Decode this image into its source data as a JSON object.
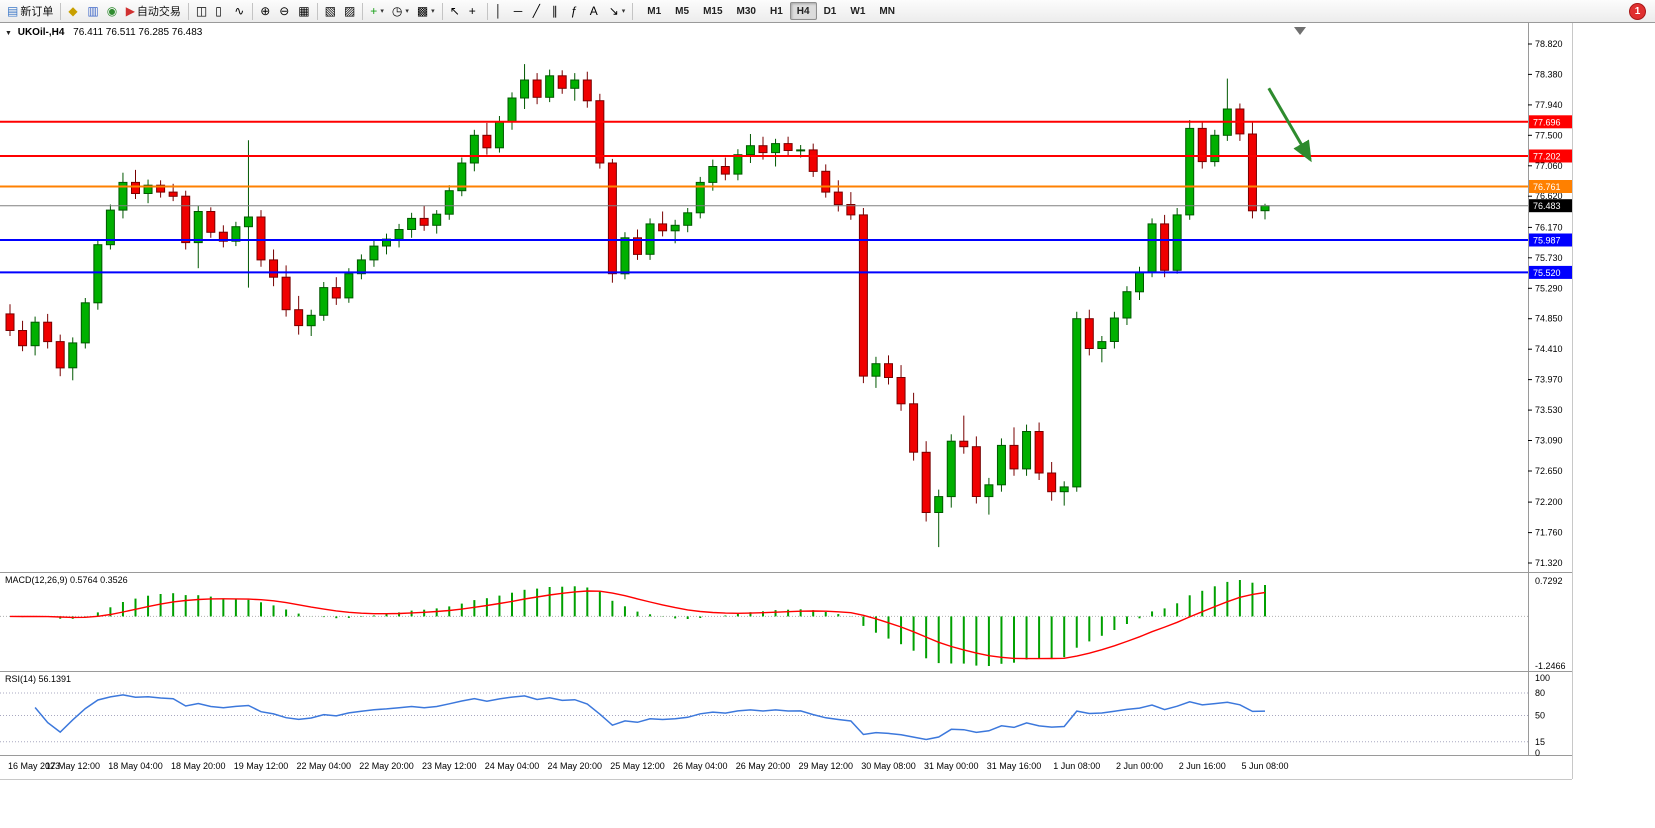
{
  "toolbar": {
    "buttons": [
      {
        "name": "new-order-button",
        "glyph": "▤",
        "glyph_color": "#3c78c8",
        "label": "新订单"
      },
      {
        "type": "sep"
      },
      {
        "name": "symbols-icon",
        "glyph": "◆",
        "glyph_color": "#c8a000"
      },
      {
        "name": "data-window-icon",
        "glyph": "▥",
        "glyph_color": "#4068c8"
      },
      {
        "name": "navigator-icon",
        "glyph": "◉",
        "glyph_color": "#2e8b2e"
      },
      {
        "name": "auto-trading-button",
        "glyph": "▶",
        "glyph_color": "#d03030",
        "label": "自动交易"
      },
      {
        "type": "sep"
      },
      {
        "name": "bar-chart-icon",
        "glyph": "◫"
      },
      {
        "name": "candlestick-chart-icon",
        "glyph": "▯"
      },
      {
        "name": "line-chart-icon",
        "glyph": "∿"
      },
      {
        "type": "sep"
      },
      {
        "name": "zoom-in-icon",
        "glyph": "⊕"
      },
      {
        "name": "zoom-out-icon",
        "glyph": "⊖"
      },
      {
        "name": "tile-windows-icon",
        "glyph": "▦"
      },
      {
        "type": "sep"
      },
      {
        "name": "new-chart-icon",
        "glyph": "▧"
      },
      {
        "name": "profiles-icon",
        "glyph": "▨"
      },
      {
        "type": "sep"
      },
      {
        "name": "add-indicator-button",
        "glyph": "+",
        "glyph_color": "#18a018",
        "caret": true
      },
      {
        "name": "periods-button",
        "glyph": "◷",
        "caret": true
      },
      {
        "name": "template-button",
        "glyph": "▩",
        "caret": true
      },
      {
        "type": "sep"
      },
      {
        "name": "cursor-icon",
        "glyph": "↖"
      },
      {
        "name": "crosshair-icon",
        "glyph": "+"
      },
      {
        "type": "sep"
      },
      {
        "name": "vertical-line-icon",
        "glyph": "│"
      },
      {
        "name": "horizontal-line-icon",
        "glyph": "─"
      },
      {
        "name": "trendline-icon",
        "glyph": "╱"
      },
      {
        "name": "channel-icon",
        "glyph": "∥"
      },
      {
        "name": "fibonacci-icon",
        "glyph": "ƒ"
      },
      {
        "name": "text-tool-icon",
        "glyph": "A"
      },
      {
        "name": "arrows-tool-button",
        "glyph": "↘",
        "caret": true
      },
      {
        "type": "sep"
      }
    ],
    "timeframes": {
      "items": [
        "M1",
        "M5",
        "M15",
        "M30",
        "H1",
        "H4",
        "D1",
        "W1",
        "MN"
      ],
      "active": "H4"
    },
    "notification": {
      "count": "1"
    }
  },
  "chart": {
    "menu_icon": "▼",
    "title_symbol": "UKOil-,H4",
    "title_ohlc": "76.411 76.511 76.285 76.483",
    "indicators": {
      "macd_label": "MACD(12,26,9)",
      "macd_values": "0.5764 0.3526",
      "rsi_label": "RSI(14)",
      "rsi_value": "56.1391"
    }
  },
  "chart_data": {
    "type": "candlestick",
    "symbol": "UKOil-",
    "period": "H4",
    "last_quote": {
      "open": 76.411,
      "high": 76.511,
      "low": 76.285,
      "close": 76.483
    },
    "price_axis": {
      "min": 71.32,
      "max": 78.82,
      "tick_labels": [
        "78.820",
        "78.380",
        "77.940",
        "77.500",
        "77.060",
        "76.620",
        "76.170",
        "75.730",
        "75.290",
        "74.850",
        "74.410",
        "73.970",
        "73.530",
        "73.090",
        "72.650",
        "72.200",
        "71.760",
        "71.320"
      ]
    },
    "time_labels": [
      "16 May 2023",
      "17 May 12:00",
      "18 May 04:00",
      "18 May 20:00",
      "19 May 12:00",
      "22 May 04:00",
      "22 May 20:00",
      "23 May 12:00",
      "24 May 04:00",
      "24 May 20:00",
      "25 May 12:00",
      "26 May 04:00",
      "26 May 20:00",
      "29 May 12:00",
      "30 May 08:00",
      "31 May 00:00",
      "31 May 16:00",
      "1 Jun 08:00",
      "2 Jun 00:00",
      "2 Jun 16:00",
      "5 Jun 08:00"
    ],
    "ohlc": [
      [
        74.92,
        75.06,
        74.6,
        74.68
      ],
      [
        74.68,
        74.82,
        74.38,
        74.46
      ],
      [
        74.46,
        74.88,
        74.32,
        74.8
      ],
      [
        74.8,
        74.92,
        74.42,
        74.52
      ],
      [
        74.52,
        74.62,
        74.02,
        74.14
      ],
      [
        74.14,
        74.58,
        73.96,
        74.5
      ],
      [
        74.5,
        75.15,
        74.42,
        75.08
      ],
      [
        75.08,
        76.0,
        74.98,
        75.92
      ],
      [
        75.92,
        76.5,
        75.85,
        76.42
      ],
      [
        76.42,
        76.96,
        76.3,
        76.82
      ],
      [
        76.82,
        77.0,
        76.58,
        76.66
      ],
      [
        76.66,
        76.86,
        76.52,
        76.78
      ],
      [
        76.78,
        76.85,
        76.6,
        76.68
      ],
      [
        76.68,
        76.8,
        76.55,
        76.62
      ],
      [
        76.62,
        76.7,
        75.85,
        75.95
      ],
      [
        75.95,
        76.48,
        75.58,
        76.4
      ],
      [
        76.4,
        76.46,
        76.02,
        76.1
      ],
      [
        76.1,
        76.2,
        75.88,
        75.97
      ],
      [
        75.97,
        76.25,
        75.9,
        76.18
      ],
      [
        76.18,
        77.43,
        75.3,
        76.32
      ],
      [
        76.32,
        76.42,
        75.6,
        75.7
      ],
      [
        75.7,
        75.85,
        75.32,
        75.45
      ],
      [
        75.45,
        75.62,
        74.88,
        74.98
      ],
      [
        74.98,
        75.18,
        74.62,
        74.75
      ],
      [
        74.75,
        74.98,
        74.6,
        74.9
      ],
      [
        74.9,
        75.38,
        74.82,
        75.3
      ],
      [
        75.3,
        75.45,
        75.05,
        75.15
      ],
      [
        75.15,
        75.58,
        75.08,
        75.5
      ],
      [
        75.5,
        75.78,
        75.42,
        75.7
      ],
      [
        75.7,
        75.98,
        75.6,
        75.9
      ],
      [
        75.9,
        76.08,
        75.78,
        76.0
      ],
      [
        76.0,
        76.22,
        75.88,
        76.14
      ],
      [
        76.14,
        76.38,
        76.02,
        76.3
      ],
      [
        76.3,
        76.48,
        76.12,
        76.2
      ],
      [
        76.2,
        76.42,
        76.08,
        76.36
      ],
      [
        76.36,
        76.78,
        76.28,
        76.7
      ],
      [
        76.7,
        77.18,
        76.62,
        77.1
      ],
      [
        77.1,
        77.58,
        76.98,
        77.5
      ],
      [
        77.5,
        77.68,
        77.22,
        77.32
      ],
      [
        77.32,
        77.78,
        77.25,
        77.7
      ],
      [
        77.7,
        78.12,
        77.58,
        78.04
      ],
      [
        78.04,
        78.53,
        77.88,
        78.3
      ],
      [
        78.3,
        78.4,
        77.95,
        78.05
      ],
      [
        78.05,
        78.45,
        77.98,
        78.36
      ],
      [
        78.36,
        78.44,
        78.1,
        78.18
      ],
      [
        78.18,
        78.4,
        78.0,
        78.3
      ],
      [
        78.3,
        78.42,
        77.9,
        78.0
      ],
      [
        78.0,
        78.1,
        77.02,
        77.1
      ],
      [
        77.1,
        77.16,
        75.37,
        75.5
      ],
      [
        75.5,
        76.1,
        75.42,
        76.02
      ],
      [
        76.02,
        76.14,
        75.7,
        75.78
      ],
      [
        75.78,
        76.3,
        75.7,
        76.22
      ],
      [
        76.22,
        76.4,
        76.04,
        76.12
      ],
      [
        76.12,
        76.28,
        75.94,
        76.2
      ],
      [
        76.2,
        76.45,
        76.1,
        76.38
      ],
      [
        76.38,
        76.9,
        76.3,
        76.82
      ],
      [
        76.82,
        77.15,
        76.7,
        77.05
      ],
      [
        77.05,
        77.18,
        76.85,
        76.94
      ],
      [
        76.94,
        77.3,
        76.85,
        77.22
      ],
      [
        77.22,
        77.52,
        77.1,
        77.35
      ],
      [
        77.35,
        77.48,
        77.15,
        77.25
      ],
      [
        77.25,
        77.45,
        77.05,
        77.38
      ],
      [
        77.38,
        77.48,
        77.2,
        77.28
      ],
      [
        77.28,
        77.36,
        77.18,
        77.29
      ],
      [
        77.29,
        77.38,
        76.9,
        76.98
      ],
      [
        76.98,
        77.08,
        76.6,
        76.68
      ],
      [
        76.68,
        76.85,
        76.4,
        76.5
      ],
      [
        76.5,
        76.68,
        76.28,
        76.35
      ],
      [
        76.35,
        76.45,
        73.92,
        74.02
      ],
      [
        74.02,
        74.3,
        73.85,
        74.2
      ],
      [
        74.2,
        74.32,
        73.9,
        74.0
      ],
      [
        74.0,
        74.18,
        73.52,
        73.62
      ],
      [
        73.62,
        73.78,
        72.8,
        72.92
      ],
      [
        72.92,
        73.08,
        71.92,
        72.05
      ],
      [
        72.05,
        72.38,
        71.55,
        72.28
      ],
      [
        72.28,
        73.18,
        72.12,
        73.08
      ],
      [
        73.08,
        73.45,
        72.9,
        73.0
      ],
      [
        73.0,
        73.15,
        72.18,
        72.28
      ],
      [
        72.28,
        72.55,
        72.02,
        72.45
      ],
      [
        72.45,
        73.12,
        72.35,
        73.02
      ],
      [
        73.02,
        73.28,
        72.58,
        72.68
      ],
      [
        72.68,
        73.32,
        72.58,
        73.22
      ],
      [
        73.22,
        73.35,
        72.52,
        72.62
      ],
      [
        72.62,
        72.78,
        72.22,
        72.35
      ],
      [
        72.35,
        72.5,
        72.15,
        72.42
      ],
      [
        72.42,
        74.95,
        72.35,
        74.85
      ],
      [
        74.85,
        74.98,
        74.32,
        74.42
      ],
      [
        74.42,
        74.6,
        74.22,
        74.52
      ],
      [
        74.52,
        74.95,
        74.42,
        74.86
      ],
      [
        74.86,
        75.32,
        74.76,
        75.24
      ],
      [
        75.24,
        75.6,
        75.12,
        75.52
      ],
      [
        75.52,
        76.3,
        75.45,
        76.22
      ],
      [
        76.22,
        76.35,
        75.45,
        75.55
      ],
      [
        75.55,
        76.45,
        75.5,
        76.35
      ],
      [
        76.35,
        77.72,
        76.28,
        77.6
      ],
      [
        77.6,
        77.7,
        77.02,
        77.12
      ],
      [
        77.12,
        77.58,
        77.05,
        77.5
      ],
      [
        77.5,
        78.32,
        77.42,
        77.88
      ],
      [
        77.88,
        77.96,
        77.42,
        77.52
      ],
      [
        77.52,
        77.7,
        76.3,
        76.41
      ],
      [
        76.411,
        76.511,
        76.285,
        76.483
      ]
    ],
    "levels": [
      {
        "price": 77.696,
        "color": "#FF0000",
        "label": "77.696"
      },
      {
        "price": 77.202,
        "color": "#FF0000",
        "label": "77.202"
      },
      {
        "price": 76.761,
        "color": "#FF8000",
        "label": "76.761"
      },
      {
        "price": 76.483,
        "color": "#808080",
        "badge": "#000000",
        "label": "76.483",
        "current": true
      },
      {
        "price": 75.987,
        "color": "#0000FF",
        "label": "75.987"
      },
      {
        "price": 75.52,
        "color": "#0000FF",
        "label": "75.520"
      }
    ],
    "annotation_arrow": {
      "color": "#2e8b2e",
      "from": {
        "index": 100.3,
        "price": 78.18
      },
      "to": {
        "index": 103.6,
        "price": 77.15
      }
    },
    "macd": {
      "params": [
        12,
        26,
        9
      ],
      "current_values": [
        0.5764,
        0.3526
      ],
      "scale_labels": [
        "0.7292",
        "-1.2466"
      ],
      "histogram_color": "#00A000",
      "signal_color": "#FF0000"
    },
    "rsi": {
      "period": 14,
      "current_value": 56.1391,
      "line_color": "#3C78DC",
      "scale_labels": [
        {
          "value": 100,
          "label": "100"
        },
        {
          "value": 80,
          "label": "80"
        },
        {
          "value": 50,
          "label": "50"
        },
        {
          "value": 15,
          "label": "15"
        },
        {
          "value": 0,
          "label": "0"
        }
      ],
      "levels": [
        80,
        50,
        15
      ]
    },
    "colors": {
      "up": "#00B000",
      "up_border": "#005800",
      "down": "#F00000",
      "down_border": "#780000",
      "background": "#FFFFFF"
    }
  }
}
